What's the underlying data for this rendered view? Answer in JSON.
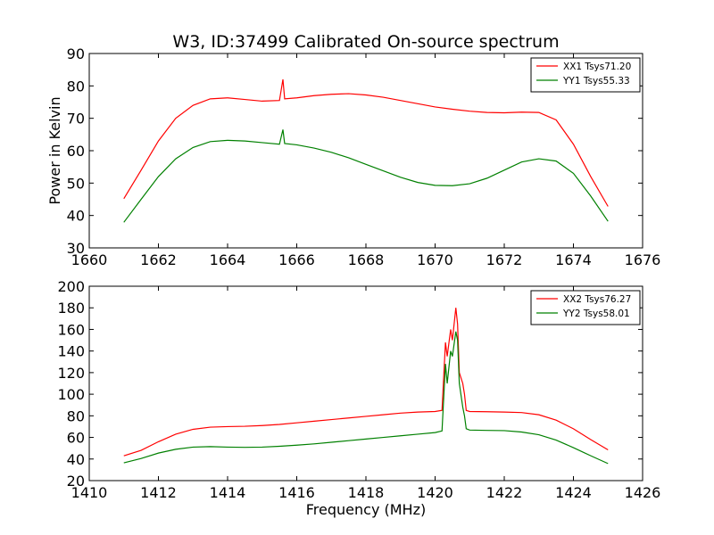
{
  "figure": {
    "title": "W3, ID:37499 Calibrated On-source spectrum"
  },
  "chart_data": [
    {
      "type": "line",
      "title": "W3, ID:37499 Calibrated On-source spectrum",
      "xlabel": "",
      "ylabel": "Power in Kelvin",
      "xlim": [
        1660,
        1676
      ],
      "ylim": [
        30,
        90
      ],
      "xticks": [
        1660,
        1662,
        1664,
        1666,
        1668,
        1670,
        1672,
        1674,
        1676
      ],
      "yticks": [
        30,
        40,
        50,
        60,
        70,
        80,
        90
      ],
      "legend_position": "top-right",
      "series": [
        {
          "name": "XX1 Tsys71.20",
          "color": "#ff0000",
          "points": [
            [
              1661.0,
              45.2
            ],
            [
              1661.5,
              54.0
            ],
            [
              1662.0,
              63.0
            ],
            [
              1662.5,
              70.0
            ],
            [
              1663.0,
              74.0
            ],
            [
              1663.5,
              76.0
            ],
            [
              1664.0,
              76.3
            ],
            [
              1664.5,
              75.8
            ],
            [
              1665.0,
              75.3
            ],
            [
              1665.5,
              75.5
            ],
            [
              1665.6,
              82.0
            ],
            [
              1665.65,
              76.0
            ],
            [
              1666.0,
              76.3
            ],
            [
              1666.5,
              77.0
            ],
            [
              1667.0,
              77.4
            ],
            [
              1667.5,
              77.6
            ],
            [
              1668.0,
              77.2
            ],
            [
              1668.5,
              76.5
            ],
            [
              1669.0,
              75.5
            ],
            [
              1669.5,
              74.5
            ],
            [
              1670.0,
              73.5
            ],
            [
              1670.5,
              72.8
            ],
            [
              1671.0,
              72.2
            ],
            [
              1671.5,
              71.8
            ],
            [
              1672.0,
              71.7
            ],
            [
              1672.5,
              71.9
            ],
            [
              1673.0,
              71.8
            ],
            [
              1673.5,
              69.5
            ],
            [
              1674.0,
              62.0
            ],
            [
              1674.5,
              52.0
            ],
            [
              1675.0,
              42.8
            ]
          ]
        },
        {
          "name": "YY1 Tsys55.33",
          "color": "#008000",
          "points": [
            [
              1661.0,
              37.9
            ],
            [
              1661.5,
              45.0
            ],
            [
              1662.0,
              52.0
            ],
            [
              1662.5,
              57.5
            ],
            [
              1663.0,
              61.0
            ],
            [
              1663.5,
              62.8
            ],
            [
              1664.0,
              63.2
            ],
            [
              1664.5,
              63.0
            ],
            [
              1665.0,
              62.5
            ],
            [
              1665.5,
              62.0
            ],
            [
              1665.6,
              66.5
            ],
            [
              1665.65,
              62.2
            ],
            [
              1666.0,
              61.8
            ],
            [
              1666.5,
              60.8
            ],
            [
              1667.0,
              59.5
            ],
            [
              1667.5,
              57.8
            ],
            [
              1668.0,
              55.8
            ],
            [
              1668.5,
              53.8
            ],
            [
              1669.0,
              51.8
            ],
            [
              1669.5,
              50.2
            ],
            [
              1670.0,
              49.3
            ],
            [
              1670.5,
              49.2
            ],
            [
              1671.0,
              49.8
            ],
            [
              1671.5,
              51.5
            ],
            [
              1672.0,
              54.0
            ],
            [
              1672.5,
              56.5
            ],
            [
              1673.0,
              57.5
            ],
            [
              1673.5,
              56.8
            ],
            [
              1674.0,
              53.0
            ],
            [
              1674.5,
              46.0
            ],
            [
              1675.0,
              38.2
            ]
          ]
        }
      ]
    },
    {
      "type": "line",
      "title": "",
      "xlabel": "Frequency (MHz)",
      "ylabel": "",
      "xlim": [
        1410,
        1426
      ],
      "ylim": [
        20,
        200
      ],
      "xticks": [
        1410,
        1412,
        1414,
        1416,
        1418,
        1420,
        1422,
        1424,
        1426
      ],
      "yticks": [
        20,
        40,
        60,
        80,
        100,
        120,
        140,
        160,
        180,
        200
      ],
      "legend_position": "top-right",
      "series": [
        {
          "name": "XX2 Tsys76.27",
          "color": "#ff0000",
          "points": [
            [
              1411.0,
              43.0
            ],
            [
              1411.5,
              48.0
            ],
            [
              1412.0,
              56.0
            ],
            [
              1412.5,
              63.0
            ],
            [
              1413.0,
              67.5
            ],
            [
              1413.5,
              69.5
            ],
            [
              1414.0,
              70.0
            ],
            [
              1414.5,
              70.3
            ],
            [
              1415.0,
              71.0
            ],
            [
              1415.5,
              72.0
            ],
            [
              1416.0,
              73.5
            ],
            [
              1416.5,
              75.0
            ],
            [
              1417.0,
              76.5
            ],
            [
              1417.5,
              78.0
            ],
            [
              1418.0,
              79.5
            ],
            [
              1418.5,
              81.0
            ],
            [
              1419.0,
              82.5
            ],
            [
              1419.5,
              83.5
            ],
            [
              1420.0,
              84.0
            ],
            [
              1420.2,
              85.0
            ],
            [
              1420.3,
              148.0
            ],
            [
              1420.35,
              135.0
            ],
            [
              1420.45,
              160.0
            ],
            [
              1420.5,
              150.0
            ],
            [
              1420.6,
              180.0
            ],
            [
              1420.65,
              165.0
            ],
            [
              1420.7,
              120.0
            ],
            [
              1420.8,
              110.0
            ],
            [
              1420.85,
              100.0
            ],
            [
              1420.9,
              85.0
            ],
            [
              1421.0,
              84.0
            ],
            [
              1421.5,
              83.8
            ],
            [
              1422.0,
              83.5
            ],
            [
              1422.5,
              83.0
            ],
            [
              1423.0,
              81.0
            ],
            [
              1423.5,
              76.0
            ],
            [
              1424.0,
              68.0
            ],
            [
              1424.5,
              58.0
            ],
            [
              1425.0,
              48.5
            ]
          ]
        },
        {
          "name": "YY2 Tsys58.01",
          "color": "#008000",
          "points": [
            [
              1411.0,
              36.5
            ],
            [
              1411.5,
              40.5
            ],
            [
              1412.0,
              45.5
            ],
            [
              1412.5,
              49.0
            ],
            [
              1413.0,
              51.0
            ],
            [
              1413.5,
              51.5
            ],
            [
              1414.0,
              51.0
            ],
            [
              1414.5,
              50.8
            ],
            [
              1415.0,
              51.0
            ],
            [
              1415.5,
              51.8
            ],
            [
              1416.0,
              52.8
            ],
            [
              1416.5,
              54.0
            ],
            [
              1417.0,
              55.5
            ],
            [
              1417.5,
              57.0
            ],
            [
              1418.0,
              58.5
            ],
            [
              1418.5,
              60.0
            ],
            [
              1419.0,
              61.5
            ],
            [
              1419.5,
              63.0
            ],
            [
              1420.0,
              64.5
            ],
            [
              1420.2,
              66.0
            ],
            [
              1420.3,
              128.0
            ],
            [
              1420.35,
              110.0
            ],
            [
              1420.45,
              140.0
            ],
            [
              1420.5,
              135.0
            ],
            [
              1420.6,
              158.0
            ],
            [
              1420.65,
              150.0
            ],
            [
              1420.7,
              110.0
            ],
            [
              1420.8,
              88.0
            ],
            [
              1420.85,
              80.0
            ],
            [
              1420.9,
              68.0
            ],
            [
              1421.0,
              66.8
            ],
            [
              1421.5,
              66.5
            ],
            [
              1422.0,
              66.3
            ],
            [
              1422.5,
              65.0
            ],
            [
              1423.0,
              62.5
            ],
            [
              1423.5,
              57.5
            ],
            [
              1424.0,
              50.5
            ],
            [
              1424.5,
              43.0
            ],
            [
              1425.0,
              35.8
            ]
          ]
        }
      ]
    }
  ]
}
